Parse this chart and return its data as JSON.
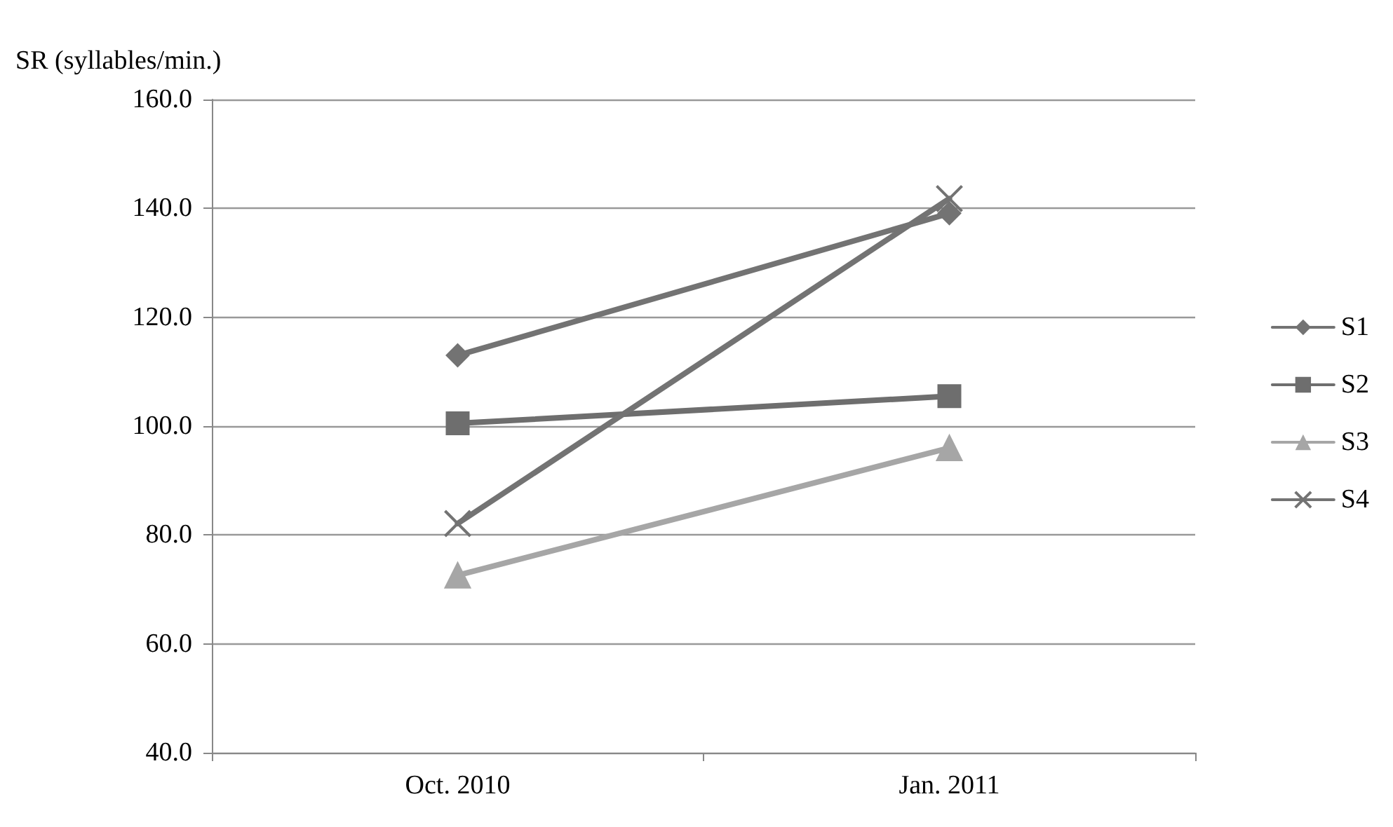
{
  "chart_data": {
    "type": "line",
    "ylabel": "SR (syllables/min.)",
    "categories": [
      "Oct. 2010",
      "Jan. 2011"
    ],
    "series": [
      {
        "name": "S1",
        "color": "#737373",
        "marker": "diamond",
        "values": [
          113.0,
          139.1
        ]
      },
      {
        "name": "S2",
        "color": "#6e6e6e",
        "marker": "square",
        "values": [
          100.5,
          105.5
        ]
      },
      {
        "name": "S3",
        "color": "#a6a6a6",
        "marker": "triangle",
        "values": [
          72.6,
          96.0
        ]
      },
      {
        "name": "S4",
        "color": "#737373",
        "marker": "cross",
        "values": [
          82.1,
          141.8
        ]
      }
    ],
    "ylim": [
      40,
      160
    ],
    "yticks": [
      {
        "value": 40,
        "label": "40.0"
      },
      {
        "value": 60,
        "label": "60.0"
      },
      {
        "value": 80,
        "label": "80.0"
      },
      {
        "value": 100,
        "label": "100.0"
      },
      {
        "value": 120,
        "label": "120.0"
      },
      {
        "value": 140,
        "label": "140.0"
      },
      {
        "value": 160,
        "label": "160.0"
      }
    ],
    "grid": "y",
    "legend": "right",
    "line_style": "solid"
  }
}
